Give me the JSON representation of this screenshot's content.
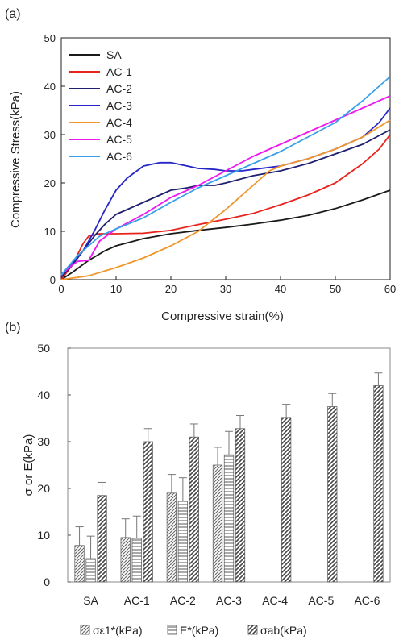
{
  "chart_data": [
    {
      "type": "line",
      "panel_label": "(a)",
      "title": "",
      "xlabel": "Compressive strain(%)",
      "ylabel": "Compressive Stress(kPa)",
      "xlim": [
        0,
        60
      ],
      "ylim": [
        0,
        50
      ],
      "x_ticks": [
        0,
        10,
        20,
        30,
        40,
        50,
        60
      ],
      "y_ticks": [
        0,
        10,
        20,
        30,
        40,
        50
      ],
      "grid": false,
      "legend_position": "top-left",
      "series": [
        {
          "name": "SA",
          "color": "#1a1a1a",
          "points": [
            [
              0,
              0
            ],
            [
              2,
              1.5
            ],
            [
              5,
              4
            ],
            [
              8,
              6
            ],
            [
              10,
              7
            ],
            [
              15,
              8.5
            ],
            [
              20,
              9.5
            ],
            [
              25,
              10.2
            ],
            [
              30,
              10.8
            ],
            [
              35,
              11.5
            ],
            [
              40,
              12.3
            ],
            [
              45,
              13.3
            ],
            [
              50,
              14.7
            ],
            [
              55,
              16.5
            ],
            [
              60,
              18.5
            ]
          ]
        },
        {
          "name": "AC-1",
          "color": "#e8231c",
          "points": [
            [
              0,
              0
            ],
            [
              2,
              3
            ],
            [
              4,
              7.5
            ],
            [
              5,
              9
            ],
            [
              7,
              9.5
            ],
            [
              10,
              9.5
            ],
            [
              15,
              9.6
            ],
            [
              20,
              10.2
            ],
            [
              25,
              11.4
            ],
            [
              30,
              12.5
            ],
            [
              35,
              13.7
            ],
            [
              40,
              15.5
            ],
            [
              45,
              17.5
            ],
            [
              50,
              20
            ],
            [
              55,
              24
            ],
            [
              58,
              27
            ],
            [
              60,
              30
            ]
          ]
        },
        {
          "name": "AC-2",
          "color": "#202070",
          "points": [
            [
              0,
              0.5
            ],
            [
              2,
              3
            ],
            [
              4,
              6
            ],
            [
              6,
              9
            ],
            [
              8,
              11.5
            ],
            [
              10,
              13.5
            ],
            [
              12,
              14.5
            ],
            [
              15,
              16
            ],
            [
              18,
              17.5
            ],
            [
              20,
              18.5
            ],
            [
              23,
              19
            ],
            [
              25,
              19.5
            ],
            [
              28,
              19.5
            ],
            [
              30,
              20
            ],
            [
              35,
              21.5
            ],
            [
              40,
              22.5
            ],
            [
              45,
              24
            ],
            [
              50,
              26
            ],
            [
              55,
              28
            ],
            [
              60,
              31
            ]
          ]
        },
        {
          "name": "AC-3",
          "color": "#2626c8",
          "points": [
            [
              0,
              1
            ],
            [
              2,
              3.5
            ],
            [
              4,
              6
            ],
            [
              6,
              10
            ],
            [
              8,
              14.5
            ],
            [
              10,
              18.5
            ],
            [
              12,
              21
            ],
            [
              15,
              23.5
            ],
            [
              18,
              24.2
            ],
            [
              20,
              24.2
            ],
            [
              23,
              23.5
            ],
            [
              25,
              23
            ],
            [
              28,
              22.8
            ],
            [
              30,
              22.5
            ],
            [
              33,
              22.5
            ],
            [
              35,
              22.8
            ],
            [
              40,
              23.5
            ],
            [
              45,
              25
            ],
            [
              50,
              27
            ],
            [
              55,
              29.5
            ],
            [
              58,
              32.5
            ],
            [
              60,
              35.5
            ]
          ]
        },
        {
          "name": "AC-4",
          "color": "#f0962c",
          "points": [
            [
              0,
              0
            ],
            [
              5,
              0.8
            ],
            [
              10,
              2.5
            ],
            [
              15,
              4.5
            ],
            [
              20,
              7
            ],
            [
              25,
              10
            ],
            [
              30,
              14.5
            ],
            [
              35,
              19.5
            ],
            [
              38,
              22.5
            ],
            [
              40,
              23.5
            ],
            [
              45,
              25
            ],
            [
              50,
              27
            ],
            [
              55,
              29.5
            ],
            [
              60,
              33
            ]
          ]
        },
        {
          "name": "AC-5",
          "color": "#f018f0",
          "points": [
            [
              0,
              1
            ],
            [
              2,
              3
            ],
            [
              3,
              3.8
            ],
            [
              5,
              4
            ],
            [
              7,
              8
            ],
            [
              10,
              10.5
            ],
            [
              15,
              13.5
            ],
            [
              20,
              17
            ],
            [
              25,
              19.5
            ],
            [
              30,
              22.5
            ],
            [
              35,
              25.5
            ],
            [
              40,
              28
            ],
            [
              45,
              30.5
            ],
            [
              50,
              33
            ],
            [
              55,
              35.5
            ],
            [
              60,
              38
            ]
          ]
        },
        {
          "name": "AC-6",
          "color": "#3aa0ea",
          "points": [
            [
              0,
              1
            ],
            [
              3,
              5
            ],
            [
              5,
              7
            ],
            [
              7,
              9
            ],
            [
              10,
              10.5
            ],
            [
              15,
              12.8
            ],
            [
              20,
              16
            ],
            [
              25,
              19
            ],
            [
              30,
              21.5
            ],
            [
              35,
              24
            ],
            [
              40,
              26.5
            ],
            [
              45,
              29.5
            ],
            [
              50,
              32.5
            ],
            [
              55,
              37
            ],
            [
              60,
              42
            ]
          ]
        }
      ]
    },
    {
      "type": "bar",
      "panel_label": "(b)",
      "title": "",
      "xlabel": "",
      "ylabel": "σ or E(kPa)",
      "ylim": [
        0,
        50
      ],
      "y_ticks": [
        0,
        10,
        20,
        30,
        40,
        50
      ],
      "grid": false,
      "legend_position": "bottom",
      "categories": [
        "SA",
        "AC-1",
        "AC-2",
        "AC-3",
        "AC-4",
        "AC-5",
        "AC-6"
      ],
      "series": [
        {
          "name": "σε1*(kPa)",
          "pattern": "crosshatch",
          "values": [
            7.8,
            9.5,
            19,
            25,
            null,
            null,
            null
          ],
          "errors": [
            4,
            4,
            4,
            3.8,
            null,
            null,
            null
          ]
        },
        {
          "name": "E*(kPa)",
          "pattern": "horizontal",
          "values": [
            5,
            9.3,
            17.3,
            27.2,
            null,
            null,
            null
          ],
          "errors": [
            4.8,
            4.8,
            5,
            5,
            null,
            null,
            null
          ]
        },
        {
          "name": "σab(kPa)",
          "pattern": "diagonal",
          "values": [
            18.5,
            30,
            31,
            32.8,
            35.2,
            37.5,
            42
          ],
          "errors": [
            2.8,
            2.8,
            2.8,
            2.8,
            2.8,
            2.8,
            2.7
          ]
        }
      ]
    }
  ]
}
